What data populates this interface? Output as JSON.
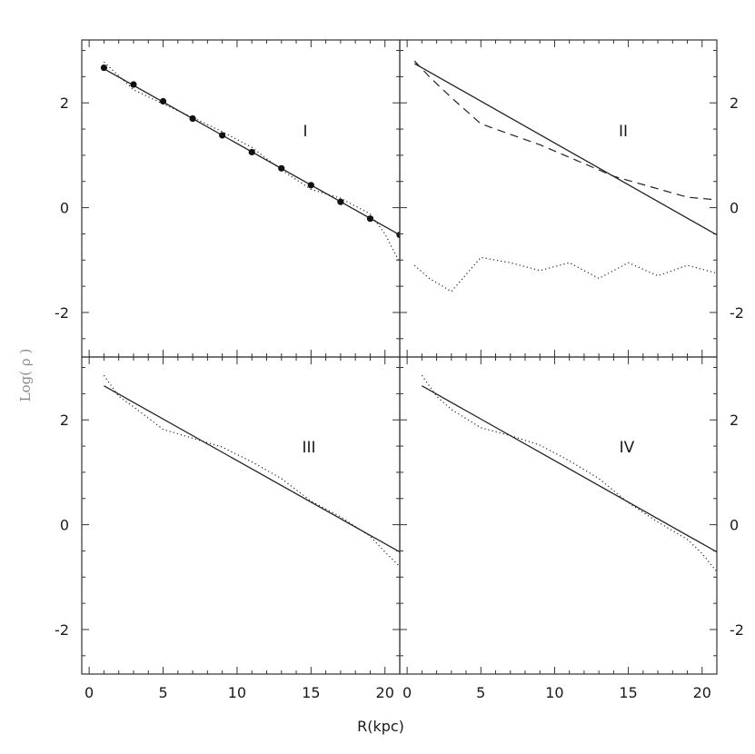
{
  "chart_data": {
    "type": "line",
    "xlabel": "R(kpc)",
    "ylabel": "Log( ρ )",
    "xlim": [
      -0.5,
      21
    ],
    "ylim": [
      -2.85,
      3.2
    ],
    "xticks": [
      0,
      5,
      10,
      15,
      20
    ],
    "xticks_right": [
      0,
      5,
      10,
      15,
      20
    ],
    "yticks": [
      -2,
      0,
      2
    ],
    "grid": false,
    "panels": [
      {
        "label": "I",
        "series": [
          {
            "style": "solid",
            "x": [
              1,
              21
            ],
            "y": [
              2.65,
              -0.52
            ]
          },
          {
            "style": "dotted",
            "x": [
              1,
              3,
              5,
              7,
              9,
              11,
              13,
              15,
              17,
              19,
              20,
              21
            ],
            "y": [
              2.78,
              2.25,
              1.98,
              1.72,
              1.45,
              1.15,
              0.72,
              0.35,
              0.18,
              -0.12,
              -0.5,
              -1.05
            ]
          },
          {
            "style": "markers",
            "x": [
              1,
              3,
              5,
              7,
              9,
              11,
              13,
              15,
              17,
              19,
              21
            ],
            "y": [
              2.67,
              2.35,
              2.03,
              1.7,
              1.38,
              1.06,
              0.75,
              0.43,
              0.11,
              -0.21,
              -0.52
            ]
          }
        ]
      },
      {
        "label": "II",
        "series": [
          {
            "style": "solid",
            "x": [
              0.5,
              21
            ],
            "y": [
              2.75,
              -0.52
            ]
          },
          {
            "style": "dashed",
            "x": [
              0.5,
              1.5,
              3,
              5,
              6,
              9,
              14,
              19,
              21
            ],
            "y": [
              2.8,
              2.5,
              2.1,
              1.6,
              1.5,
              1.2,
              0.6,
              0.2,
              0.15
            ]
          },
          {
            "style": "dotted",
            "x": [
              0.5,
              1.5,
              3,
              5,
              7,
              9,
              11,
              13,
              15,
              17,
              19,
              21
            ],
            "y": [
              -1.1,
              -1.35,
              -1.6,
              -0.95,
              -1.05,
              -1.2,
              -1.05,
              -1.35,
              -1.05,
              -1.3,
              -1.1,
              -1.25
            ]
          }
        ]
      },
      {
        "label": "III",
        "series": [
          {
            "style": "solid",
            "x": [
              1,
              21
            ],
            "y": [
              2.65,
              -0.52
            ]
          },
          {
            "style": "dotted",
            "x": [
              1,
              2,
              3,
              5,
              7,
              9,
              11,
              13,
              15,
              17,
              19,
              20,
              21
            ],
            "y": [
              2.85,
              2.45,
              2.25,
              1.82,
              1.65,
              1.48,
              1.2,
              0.88,
              0.45,
              0.15,
              -0.22,
              -0.52,
              -0.8
            ]
          }
        ]
      },
      {
        "label": "IV",
        "series": [
          {
            "style": "solid",
            "x": [
              1,
              21
            ],
            "y": [
              2.65,
              -0.52
            ]
          },
          {
            "style": "dotted",
            "x": [
              1,
              2,
              3,
              5,
              7,
              9,
              11,
              13,
              15,
              17,
              19,
              20,
              21
            ],
            "y": [
              2.85,
              2.45,
              2.2,
              1.85,
              1.7,
              1.52,
              1.22,
              0.88,
              0.42,
              0.05,
              -0.28,
              -0.55,
              -0.9
            ]
          }
        ]
      }
    ]
  }
}
